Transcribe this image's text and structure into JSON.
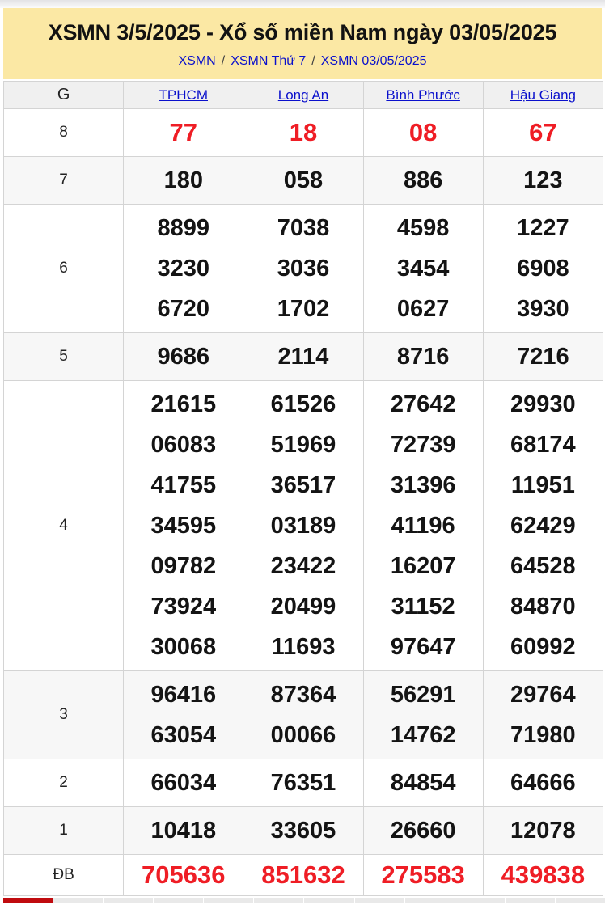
{
  "header": {
    "title": "XSMN 3/5/2025 - Xổ số miền Nam ngày 03/05/2025",
    "separator": "/",
    "breadcrumb": [
      {
        "label": "XSMN"
      },
      {
        "label": "XSMN Thứ 7"
      },
      {
        "label": "XSMN 03/05/2025"
      }
    ]
  },
  "table": {
    "corner_label": "G",
    "columns": [
      "TPHCM",
      "Long An",
      "Bình Phước",
      "Hậu Giang"
    ],
    "rows": [
      {
        "label": "8",
        "highlight": true,
        "cells": [
          [
            "77"
          ],
          [
            "18"
          ],
          [
            "08"
          ],
          [
            "67"
          ]
        ]
      },
      {
        "label": "7",
        "highlight": false,
        "cells": [
          [
            "180"
          ],
          [
            "058"
          ],
          [
            "886"
          ],
          [
            "123"
          ]
        ]
      },
      {
        "label": "6",
        "highlight": false,
        "cells": [
          [
            "8899",
            "3230",
            "6720"
          ],
          [
            "7038",
            "3036",
            "1702"
          ],
          [
            "4598",
            "3454",
            "0627"
          ],
          [
            "1227",
            "6908",
            "3930"
          ]
        ]
      },
      {
        "label": "5",
        "highlight": false,
        "cells": [
          [
            "9686"
          ],
          [
            "2114"
          ],
          [
            "8716"
          ],
          [
            "7216"
          ]
        ]
      },
      {
        "label": "4",
        "highlight": false,
        "cells": [
          [
            "21615",
            "06083",
            "41755",
            "34595",
            "09782",
            "73924",
            "30068"
          ],
          [
            "61526",
            "51969",
            "36517",
            "03189",
            "23422",
            "20499",
            "11693"
          ],
          [
            "27642",
            "72739",
            "31396",
            "41196",
            "16207",
            "31152",
            "97647"
          ],
          [
            "29930",
            "68174",
            "11951",
            "62429",
            "64528",
            "84870",
            "60992"
          ]
        ]
      },
      {
        "label": "3",
        "highlight": false,
        "cells": [
          [
            "96416",
            "63054"
          ],
          [
            "87364",
            "00066"
          ],
          [
            "56291",
            "14762"
          ],
          [
            "29764",
            "71980"
          ]
        ]
      },
      {
        "label": "2",
        "highlight": false,
        "cells": [
          [
            "66034"
          ],
          [
            "76351"
          ],
          [
            "84854"
          ],
          [
            "64666"
          ]
        ]
      },
      {
        "label": "1",
        "highlight": false,
        "cells": [
          [
            "10418"
          ],
          [
            "33605"
          ],
          [
            "26660"
          ],
          [
            "12078"
          ]
        ]
      },
      {
        "label": "ĐB",
        "highlight": true,
        "cells": [
          [
            "705636"
          ],
          [
            "851632"
          ],
          [
            "275583"
          ],
          [
            "439838"
          ]
        ]
      }
    ]
  },
  "bottom_tabs": {
    "segment_count": 12,
    "active_index": 0
  },
  "colors": {
    "header_bg": "#fbe8a4",
    "link_blue": "#0a10cc",
    "highlight_red": "#ef1d25",
    "active_tab_red": "#c00b0f",
    "head_row_bg": "#f0f0f0",
    "row_stripe": "#f7f7f7",
    "border": "#d4d4d4"
  }
}
